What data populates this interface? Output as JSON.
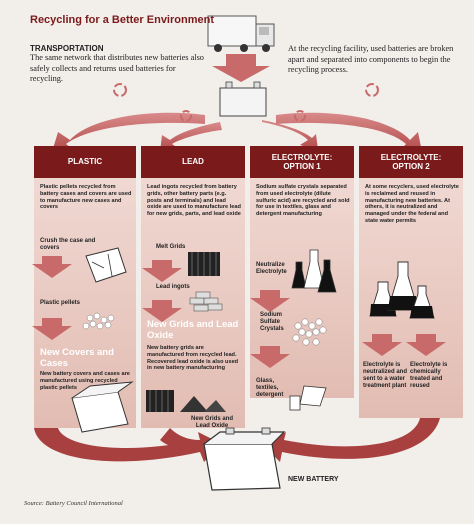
{
  "title": "Recycling for a Better Environment",
  "transportation": {
    "heading": "TRANSPORTATION",
    "body": "The same network that distributes new batteries also safely collects and returns used batteries for recycling."
  },
  "facility_text": "At the recycling facility, used batteries are broken apart and separated into components to begin the recycling process.",
  "columns": [
    {
      "heading": "PLASTIC",
      "intro": "Plastic pellets recycled from battery cases and covers are used to manufacture new cases and covers",
      "step1": "Crush the case and covers",
      "step2": "Plastic pellets",
      "stage_title": "New Covers and Cases",
      "stage_body": "New battery covers and cases are manufactured using recycled plastic pellets"
    },
    {
      "heading": "LEAD",
      "intro": "Lead ingots recycled from battery grids, other battery parts (e.g. posts and terminals) and lead oxide are used to manufacture lead for new grids, parts, and lead oxide",
      "step1": "Melt Grids",
      "step2": "Lead ingots",
      "stage_title": "New Grids and Lead Oxide",
      "stage_body": "New battery grids are manufactured from recycled lead. Recovered lead oxide is also used in new battery manufacturing",
      "bottom_label": "New Grids and Lead Oxide"
    },
    {
      "heading": "ELECTROLYTE: OPTION 1",
      "intro": "Sodium sulfate crystals separated from used electrolyte (dilute sulfuric acid) are recycled and sold for use in textiles, glass and detergent manufacturing",
      "step1": "Neutralize Electrolyte",
      "step2": "Sodium Sulfate Crystals",
      "step3": "Glass, textiles, detergent"
    },
    {
      "heading": "ELECTROLYTE: OPTION 2",
      "intro": "At some recyclers, used electrolyte is reclaimed and reused in manufacturing new batteries. At others, it is neutralized and managed under the federal and state water permits",
      "outcome_a": "Electrolyte is neutralized and sent to a water treatment plant",
      "outcome_b": "Electrolyte is chemically treated and reused"
    }
  ],
  "new_battery_label": "NEW BATTERY",
  "source": "Source: Battery Council International",
  "colors": {
    "maroon": "#7a1a1a",
    "panel": "#e6c8c0",
    "arrow": "#c86a6a",
    "background": "#f2eeea"
  },
  "icons": [
    "recycle-icon",
    "truck-icon",
    "battery-icon"
  ]
}
